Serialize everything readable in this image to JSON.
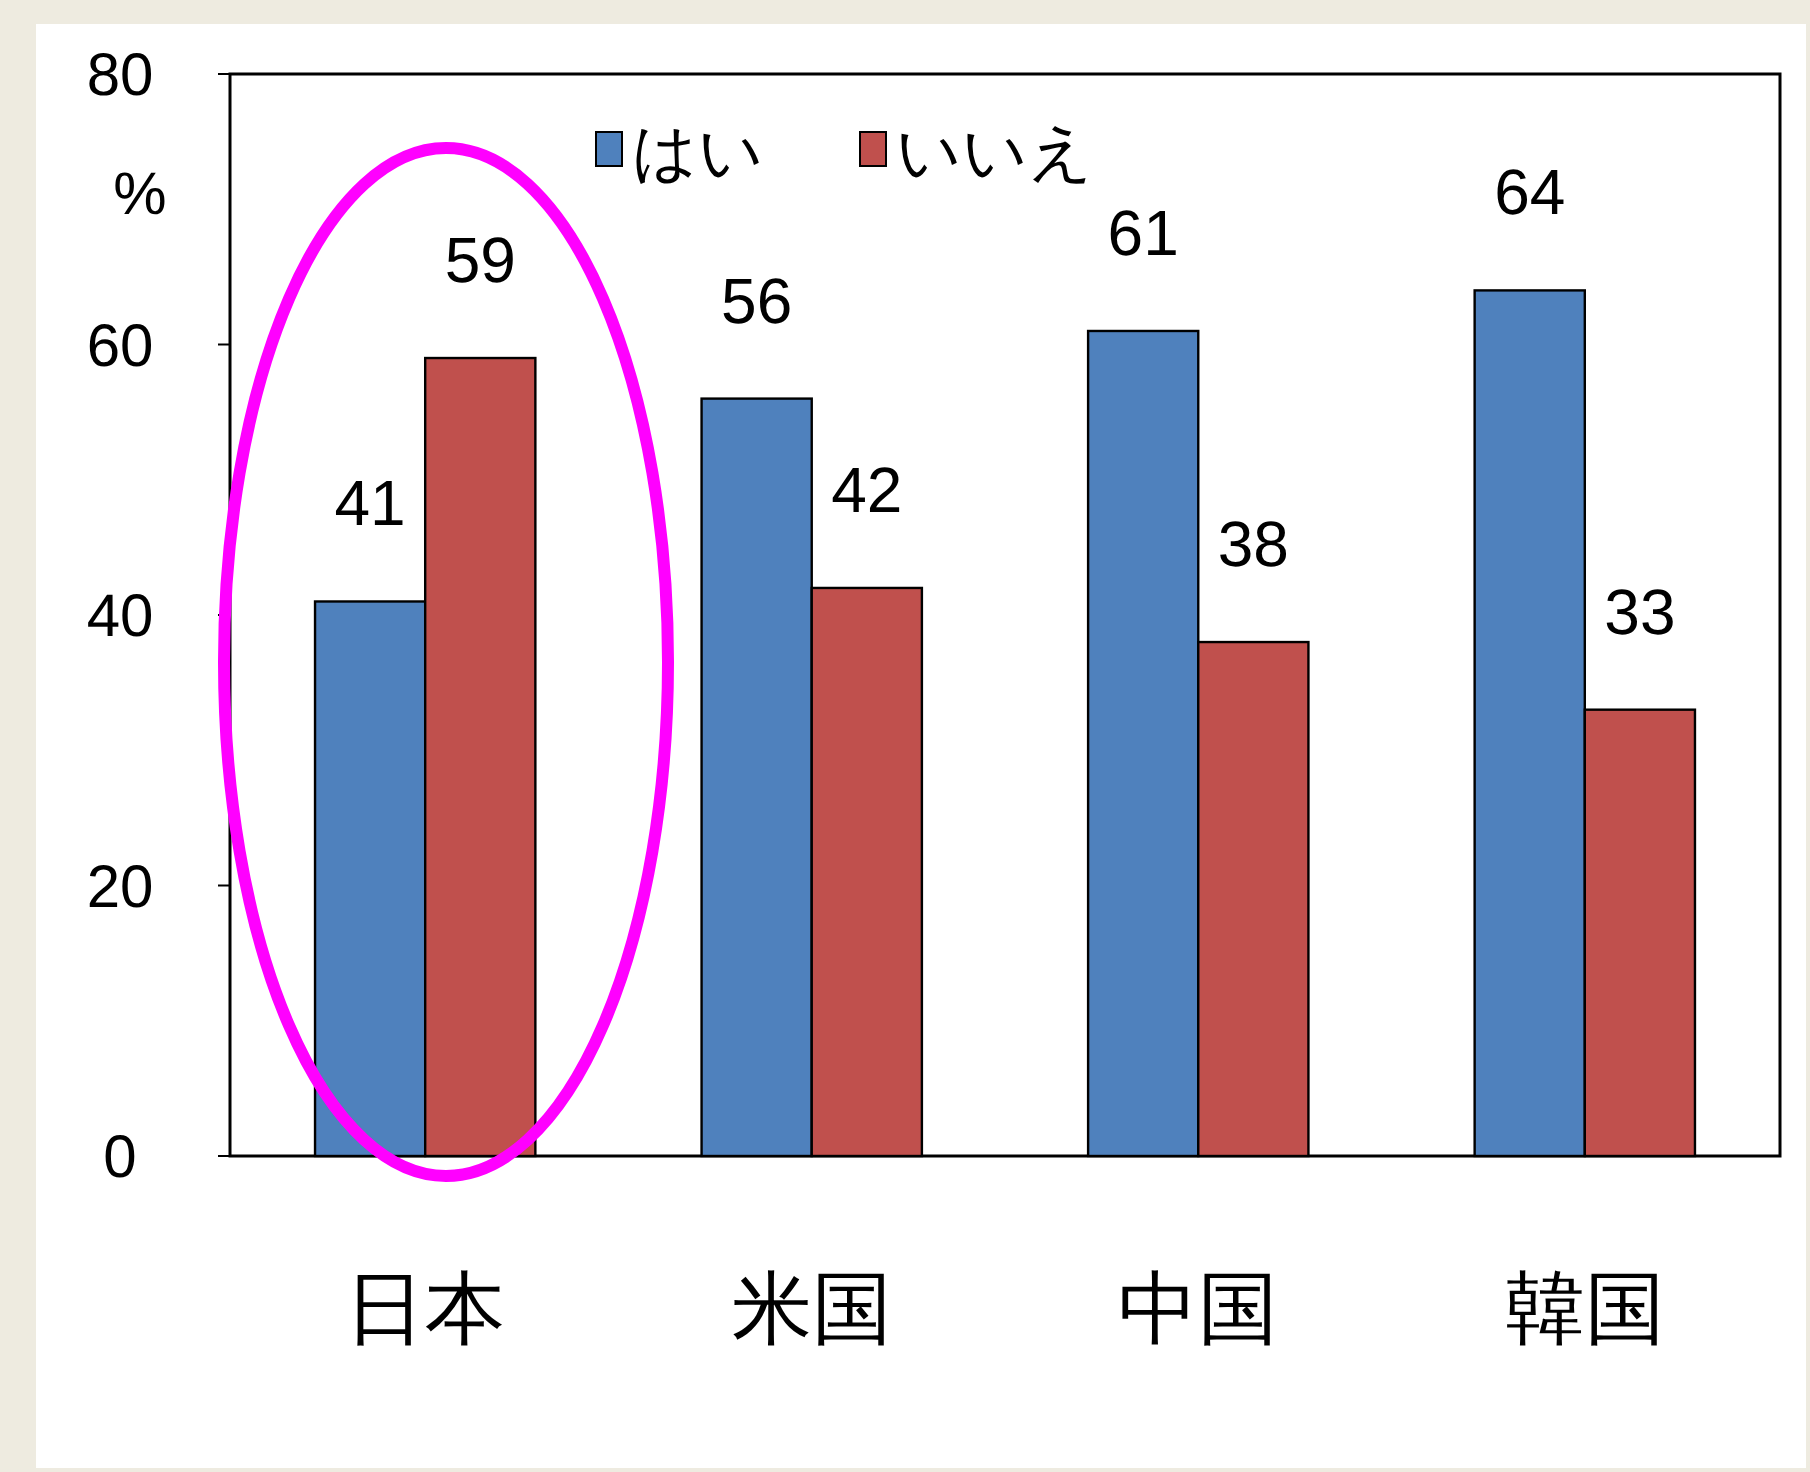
{
  "chart_data": {
    "type": "bar",
    "ylabel": "%",
    "categories": [
      "日本",
      "米国",
      "中国",
      "韓国"
    ],
    "series": [
      {
        "name": "はい",
        "color": "#4f81bd",
        "values": [
          41,
          56,
          61,
          64
        ]
      },
      {
        "name": "いいえ",
        "color": "#c0504d",
        "values": [
          59,
          42,
          38,
          33
        ]
      }
    ],
    "ylim": [
      0,
      80
    ],
    "yticks": [
      0,
      20,
      40,
      60,
      80
    ],
    "grid": false,
    "legend": "top",
    "data_labels": true
  }
}
